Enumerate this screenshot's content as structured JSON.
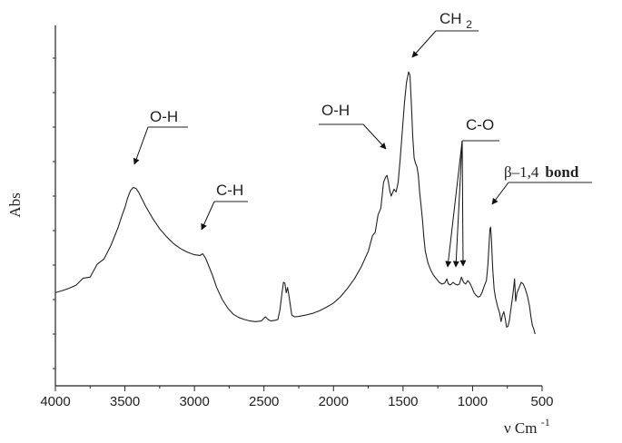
{
  "chart_data": {
    "type": "line",
    "title": "",
    "xlabel": "ν Cm",
    "xlabel_sup": "-1",
    "ylabel": "Abs",
    "x_reversed": true,
    "xlim": [
      4000,
      500
    ],
    "ylim": [
      0,
      1
    ],
    "x_ticks": [
      4000,
      3500,
      3000,
      2500,
      2000,
      1500,
      1000,
      500
    ],
    "y_ticks_labeled": false,
    "grid": false,
    "line_color": "#222222",
    "series": [
      {
        "values": [
          [
            4000,
            0.27
          ],
          [
            3950,
            0.276
          ],
          [
            3900,
            0.283
          ],
          [
            3850,
            0.292
          ],
          [
            3800,
            0.305
          ],
          [
            3750,
            0.322
          ],
          [
            3700,
            0.345
          ],
          [
            3650,
            0.375
          ],
          [
            3600,
            0.408
          ],
          [
            3550,
            0.458
          ],
          [
            3520,
            0.495
          ],
          [
            3500,
            0.517
          ],
          [
            3480,
            0.545
          ],
          [
            3460,
            0.566
          ],
          [
            3440,
            0.575
          ],
          [
            3420,
            0.572
          ],
          [
            3400,
            0.56
          ],
          [
            3350,
            0.52
          ],
          [
            3300,
            0.485
          ],
          [
            3250,
            0.455
          ],
          [
            3200,
            0.432
          ],
          [
            3150,
            0.412
          ],
          [
            3100,
            0.398
          ],
          [
            3050,
            0.387
          ],
          [
            3000,
            0.38
          ],
          [
            2960,
            0.378
          ],
          [
            2940,
            0.383
          ],
          [
            2920,
            0.37
          ],
          [
            2900,
            0.35
          ],
          [
            2870,
            0.32
          ],
          [
            2840,
            0.285
          ],
          [
            2800,
            0.25
          ],
          [
            2760,
            0.225
          ],
          [
            2720,
            0.207
          ],
          [
            2680,
            0.198
          ],
          [
            2640,
            0.192
          ],
          [
            2600,
            0.188
          ],
          [
            2560,
            0.186
          ],
          [
            2520,
            0.188
          ],
          [
            2490,
            0.2
          ],
          [
            2470,
            0.192
          ],
          [
            2450,
            0.188
          ],
          [
            2420,
            0.19
          ],
          [
            2400,
            0.192
          ],
          [
            2385,
            0.22
          ],
          [
            2370,
            0.27
          ],
          [
            2360,
            0.3
          ],
          [
            2350,
            0.298
          ],
          [
            2340,
            0.27
          ],
          [
            2330,
            0.285
          ],
          [
            2320,
            0.26
          ],
          [
            2300,
            0.205
          ],
          [
            2280,
            0.2
          ],
          [
            2250,
            0.201
          ],
          [
            2200,
            0.205
          ],
          [
            2150,
            0.21
          ],
          [
            2100,
            0.218
          ],
          [
            2050,
            0.228
          ],
          [
            2000,
            0.24
          ],
          [
            1950,
            0.258
          ],
          [
            1900,
            0.282
          ],
          [
            1850,
            0.31
          ],
          [
            1800,
            0.345
          ],
          [
            1750,
            0.39
          ],
          [
            1720,
            0.425
          ],
          [
            1700,
            0.455
          ],
          [
            1680,
            0.485
          ],
          [
            1660,
            0.525
          ],
          [
            1640,
            0.58
          ],
          [
            1625,
            0.605
          ],
          [
            1615,
            0.61
          ],
          [
            1605,
            0.59
          ],
          [
            1595,
            0.565
          ],
          [
            1585,
            0.55
          ],
          [
            1575,
            0.56
          ],
          [
            1565,
            0.57
          ],
          [
            1550,
            0.562
          ],
          [
            1535,
            0.59
          ],
          [
            1520,
            0.66
          ],
          [
            1505,
            0.74
          ],
          [
            1490,
            0.82
          ],
          [
            1475,
            0.88
          ],
          [
            1460,
            0.91
          ],
          [
            1450,
            0.9
          ],
          [
            1440,
            0.82
          ],
          [
            1430,
            0.72
          ],
          [
            1420,
            0.66
          ],
          [
            1410,
            0.645
          ],
          [
            1400,
            0.635
          ],
          [
            1390,
            0.61
          ],
          [
            1380,
            0.56
          ],
          [
            1370,
            0.52
          ],
          [
            1360,
            0.48
          ],
          [
            1350,
            0.43
          ],
          [
            1340,
            0.39
          ],
          [
            1320,
            0.355
          ],
          [
            1300,
            0.335
          ],
          [
            1280,
            0.32
          ],
          [
            1260,
            0.31
          ],
          [
            1240,
            0.3
          ],
          [
            1220,
            0.295
          ],
          [
            1200,
            0.298
          ],
          [
            1185,
            0.31
          ],
          [
            1175,
            0.296
          ],
          [
            1160,
            0.292
          ],
          [
            1140,
            0.3
          ],
          [
            1125,
            0.295
          ],
          [
            1110,
            0.292
          ],
          [
            1095,
            0.295
          ],
          [
            1080,
            0.315
          ],
          [
            1065,
            0.3
          ],
          [
            1050,
            0.295
          ],
          [
            1035,
            0.305
          ],
          [
            1020,
            0.298
          ],
          [
            1005,
            0.285
          ],
          [
            990,
            0.27
          ],
          [
            975,
            0.262
          ],
          [
            960,
            0.257
          ],
          [
            945,
            0.26
          ],
          [
            930,
            0.272
          ],
          [
            915,
            0.29
          ],
          [
            900,
            0.305
          ],
          [
            890,
            0.35
          ],
          [
            880,
            0.42
          ],
          [
            875,
            0.455
          ],
          [
            870,
            0.46
          ],
          [
            865,
            0.43
          ],
          [
            855,
            0.34
          ],
          [
            845,
            0.28
          ],
          [
            835,
            0.255
          ],
          [
            820,
            0.23
          ],
          [
            805,
            0.21
          ],
          [
            795,
            0.186
          ],
          [
            785,
            0.205
          ],
          [
            775,
            0.215
          ],
          [
            765,
            0.195
          ],
          [
            755,
            0.17
          ],
          [
            745,
            0.173
          ],
          [
            735,
            0.19
          ],
          [
            725,
            0.22
          ],
          [
            715,
            0.25
          ],
          [
            705,
            0.282
          ],
          [
            698,
            0.31
          ],
          [
            690,
            0.245
          ],
          [
            680,
            0.27
          ],
          [
            670,
            0.28
          ],
          [
            660,
            0.29
          ],
          [
            650,
            0.3
          ],
          [
            635,
            0.295
          ],
          [
            620,
            0.28
          ],
          [
            605,
            0.26
          ],
          [
            590,
            0.23
          ],
          [
            580,
            0.2
          ],
          [
            570,
            0.175
          ],
          [
            560,
            0.165
          ],
          [
            550,
            0.15
          ]
        ]
      }
    ],
    "annotations": [
      {
        "text": "O-H",
        "x": 3440,
        "y": 0.575
      },
      {
        "text": "C-H",
        "x": 2960,
        "y": 0.382
      },
      {
        "text": "O-H",
        "x": 1615,
        "y": 0.61
      },
      {
        "text": "CH",
        "sub": "2",
        "x": 1460,
        "y": 0.91
      },
      {
        "text": "C-O",
        "targets": [
          [
            1175,
            0.298
          ],
          [
            1120,
            0.295
          ],
          [
            1080,
            0.315
          ]
        ]
      },
      {
        "text": "β–1,4",
        "text_bold": "bond",
        "x": 870,
        "y": 0.46
      }
    ]
  }
}
